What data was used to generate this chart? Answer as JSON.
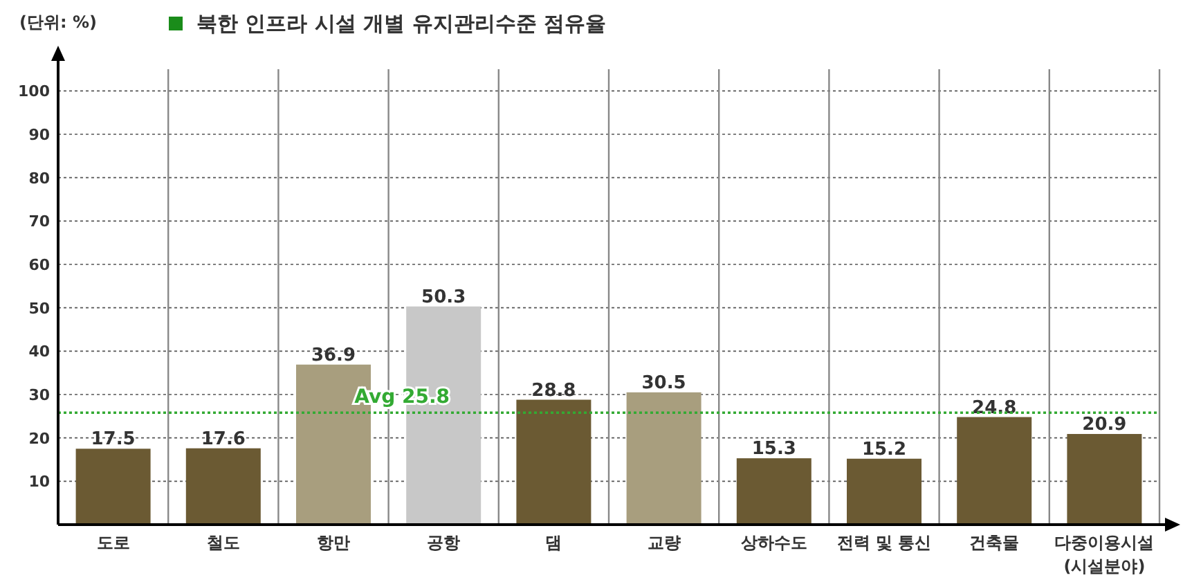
{
  "chart_data": {
    "type": "bar",
    "title": "북한 인프라 시설 개별 유지관리수준 점유율",
    "ylabel": "(단위: %)",
    "xlabel": "(시설분야)",
    "categories": [
      "도로",
      "철도",
      "항만",
      "공항",
      "댐",
      "교량",
      "상하수도",
      "전력 및 통신",
      "건축물",
      "다중이용시설"
    ],
    "values": [
      17.5,
      17.6,
      36.9,
      50.3,
      28.8,
      30.5,
      15.3,
      15.2,
      24.8,
      20.9
    ],
    "colors": [
      "#6b5a33",
      "#6b5a33",
      "#a89e7e",
      "#c8c8c8",
      "#6b5a33",
      "#a89e7e",
      "#6b5a33",
      "#6b5a33",
      "#6b5a33",
      "#6b5a33"
    ],
    "data_labels": true,
    "ylim": [
      0,
      105
    ],
    "yticks": [
      10,
      20,
      30,
      40,
      50,
      60,
      70,
      80,
      90,
      100
    ],
    "grid": true,
    "ref_lines": [
      {
        "axis": "y",
        "value": 25.8,
        "label": "Avg 25.8",
        "color": "#33aa33",
        "line_style": "dotted"
      }
    ]
  }
}
